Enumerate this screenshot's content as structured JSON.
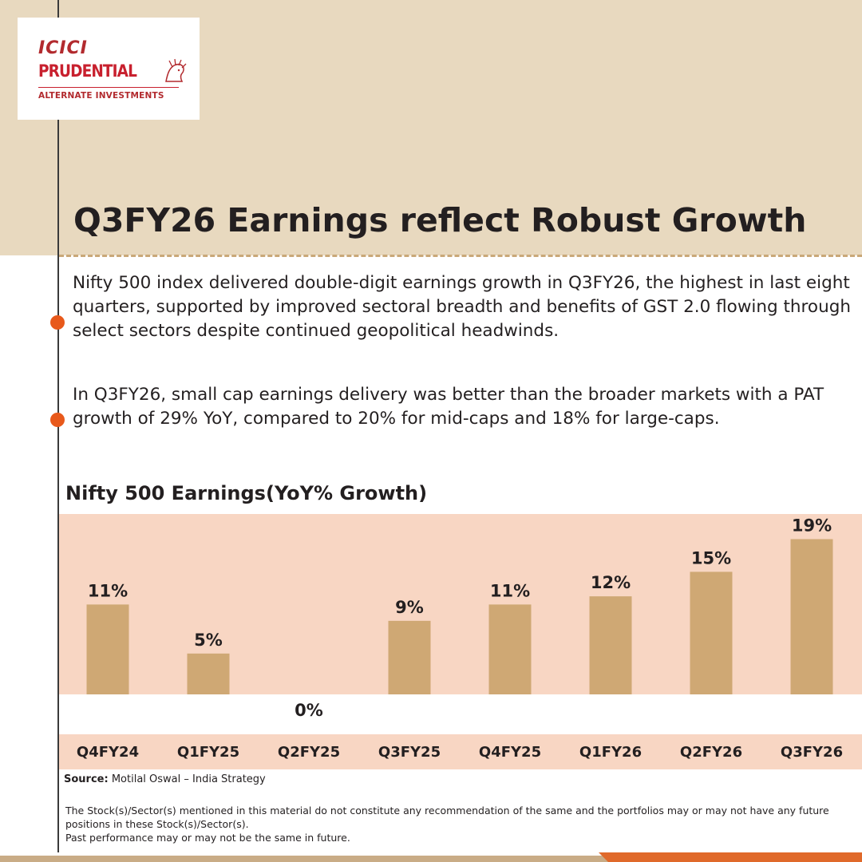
{
  "brand": {
    "logo_line1": "ICICI",
    "logo_line2": "PRUDENTIAL",
    "logo_line3": "ALTERNATE INVESTMENTS"
  },
  "title": "Q3FY26 Earnings reflect Robust Growth",
  "paragraphs": [
    "Nifty 500 index delivered double-digit earnings growth in Q3FY26, the highest in last eight quarters, supported by improved sectoral breadth and benefits of GST 2.0 flowing through select sectors despite continued geopolitical headwinds.",
    "In Q3FY26, small cap earnings delivery was better than the broader markets with a PAT growth of 29% YoY, compared to 20% for mid-caps and 18% for large-caps."
  ],
  "chart_data": {
    "type": "bar",
    "title": "Nifty 500 Earnings(YoY% Growth)",
    "categories": [
      "Q4FY24",
      "Q1FY25",
      "Q2FY25",
      "Q3FY25",
      "Q4FY25",
      "Q1FY26",
      "Q2FY26",
      "Q3FY26"
    ],
    "values": [
      11,
      5,
      0,
      9,
      11,
      12,
      15,
      19
    ],
    "data_labels": [
      "11%",
      "5%",
      "0%",
      "9%",
      "11%",
      "12%",
      "15%",
      "19%"
    ],
    "ylim": [
      0,
      21
    ],
    "grid": false,
    "bar_color": "#cfa874",
    "plot_background": "#f8d6c3",
    "category_band_color": "#f8d6c3"
  },
  "source": {
    "label": "Source:",
    "text": "Motilal Oswal – India Strategy"
  },
  "disclaimer": [
    "The Stock(s)/Sector(s) mentioned in this material do not constitute any recommendation of the same and the portfolios may or may not have any future positions in these Stock(s)/Sector(s).",
    "Past performance may or may not be the same in future."
  ],
  "colors": {
    "header_band": "#e8d9bf",
    "bullet": "#e8591b",
    "dash": "#c9a878",
    "footer_tan": "#c9ac86",
    "footer_orange": "#e0692a"
  }
}
